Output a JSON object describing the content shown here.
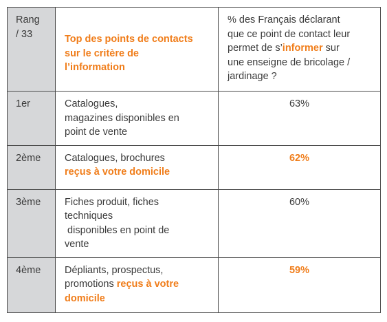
{
  "header": {
    "rank_label_line1": "Rang",
    "rank_label_line2": "/ 33",
    "title_line1": "Top des points de contacts",
    "title_line2": "sur le critère de",
    "title_line3": "l’information",
    "desc_line1": "% des Français déclarant",
    "desc_line2": "que ce point de contact leur",
    "desc_line3_pre": "permet de s’",
    "desc_line3_bold": "informer",
    "desc_line3_post": " sur",
    "desc_line4": "une enseigne de bricolage /",
    "desc_line5": "jardinage ?"
  },
  "rows": [
    {
      "rank": "1er",
      "line1": "Catalogues,",
      "line2": "magazines disponibles en",
      "line3": "point de vente",
      "pct": "63%"
    },
    {
      "rank": "2ème",
      "line1": "Catalogues, brochures",
      "line2_bold": "reçus à votre domicile",
      "pct": "62%"
    },
    {
      "rank": "3ème",
      "line1": "Fiches produit, fiches",
      "line2": "techniques",
      "line3": " disponibles en point de",
      "line4": "vente",
      "pct": "60%"
    },
    {
      "rank": "4ème",
      "line1": "Dépliants, prospectus,",
      "line2_pre": "promotions ",
      "line2_bold": "reçus à votre",
      "line3_bold": "domicile",
      "pct": "59%"
    }
  ],
  "colors": {
    "accent": "#f07d1a",
    "rank_bg": "#d6d7d9",
    "border": "#4a4a4a",
    "text": "#3a3a3a"
  }
}
